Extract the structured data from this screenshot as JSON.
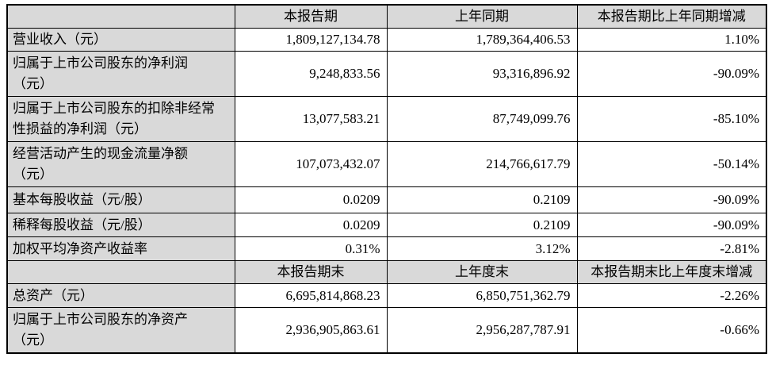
{
  "colors": {
    "header_bg": "#d9d9d9",
    "label_bg": "#d9d9d9",
    "value_bg": "#ffffff",
    "border": "#000000",
    "text": "#000000"
  },
  "table": {
    "sections": [
      {
        "header": {
          "label": "",
          "current": "本报告期",
          "prior": "上年同期",
          "change": "本报告期比上年同期增减"
        },
        "rows": [
          {
            "label": "营业收入（元）",
            "current": "1,809,127,134.78",
            "prior": "1,789,364,406.53",
            "change": "1.10%"
          },
          {
            "label": "归属于上市公司股东的净利润\n（元）",
            "current": "9,248,833.56",
            "prior": "93,316,896.92",
            "change": "-90.09%"
          },
          {
            "label": "归属于上市公司股东的扣除非经常\n性损益的净利润（元）",
            "current": "13,077,583.21",
            "prior": "87,749,099.76",
            "change": "-85.10%"
          },
          {
            "label": "经营活动产生的现金流量净额\n（元）",
            "current": "107,073,432.07",
            "prior": "214,766,617.79",
            "change": "-50.14%"
          },
          {
            "label": "基本每股收益（元/股）",
            "current": "0.0209",
            "prior": "0.2109",
            "change": "-90.09%"
          },
          {
            "label": "稀释每股收益（元/股）",
            "current": "0.0209",
            "prior": "0.2109",
            "change": "-90.09%"
          },
          {
            "label": "加权平均净资产收益率",
            "current": "0.31%",
            "prior": "3.12%",
            "change": "-2.81%"
          }
        ]
      },
      {
        "header": {
          "label": "",
          "current": "本报告期末",
          "prior": "上年度末",
          "change": "本报告期末比上年度末增减"
        },
        "rows": [
          {
            "label": "总资产（元）",
            "current": "6,695,814,868.23",
            "prior": "6,850,751,362.79",
            "change": "-2.26%"
          },
          {
            "label": "归属于上市公司股东的净资产\n（元）",
            "current": "2,936,905,863.61",
            "prior": "2,956,287,787.91",
            "change": "-0.66%"
          }
        ]
      }
    ]
  }
}
